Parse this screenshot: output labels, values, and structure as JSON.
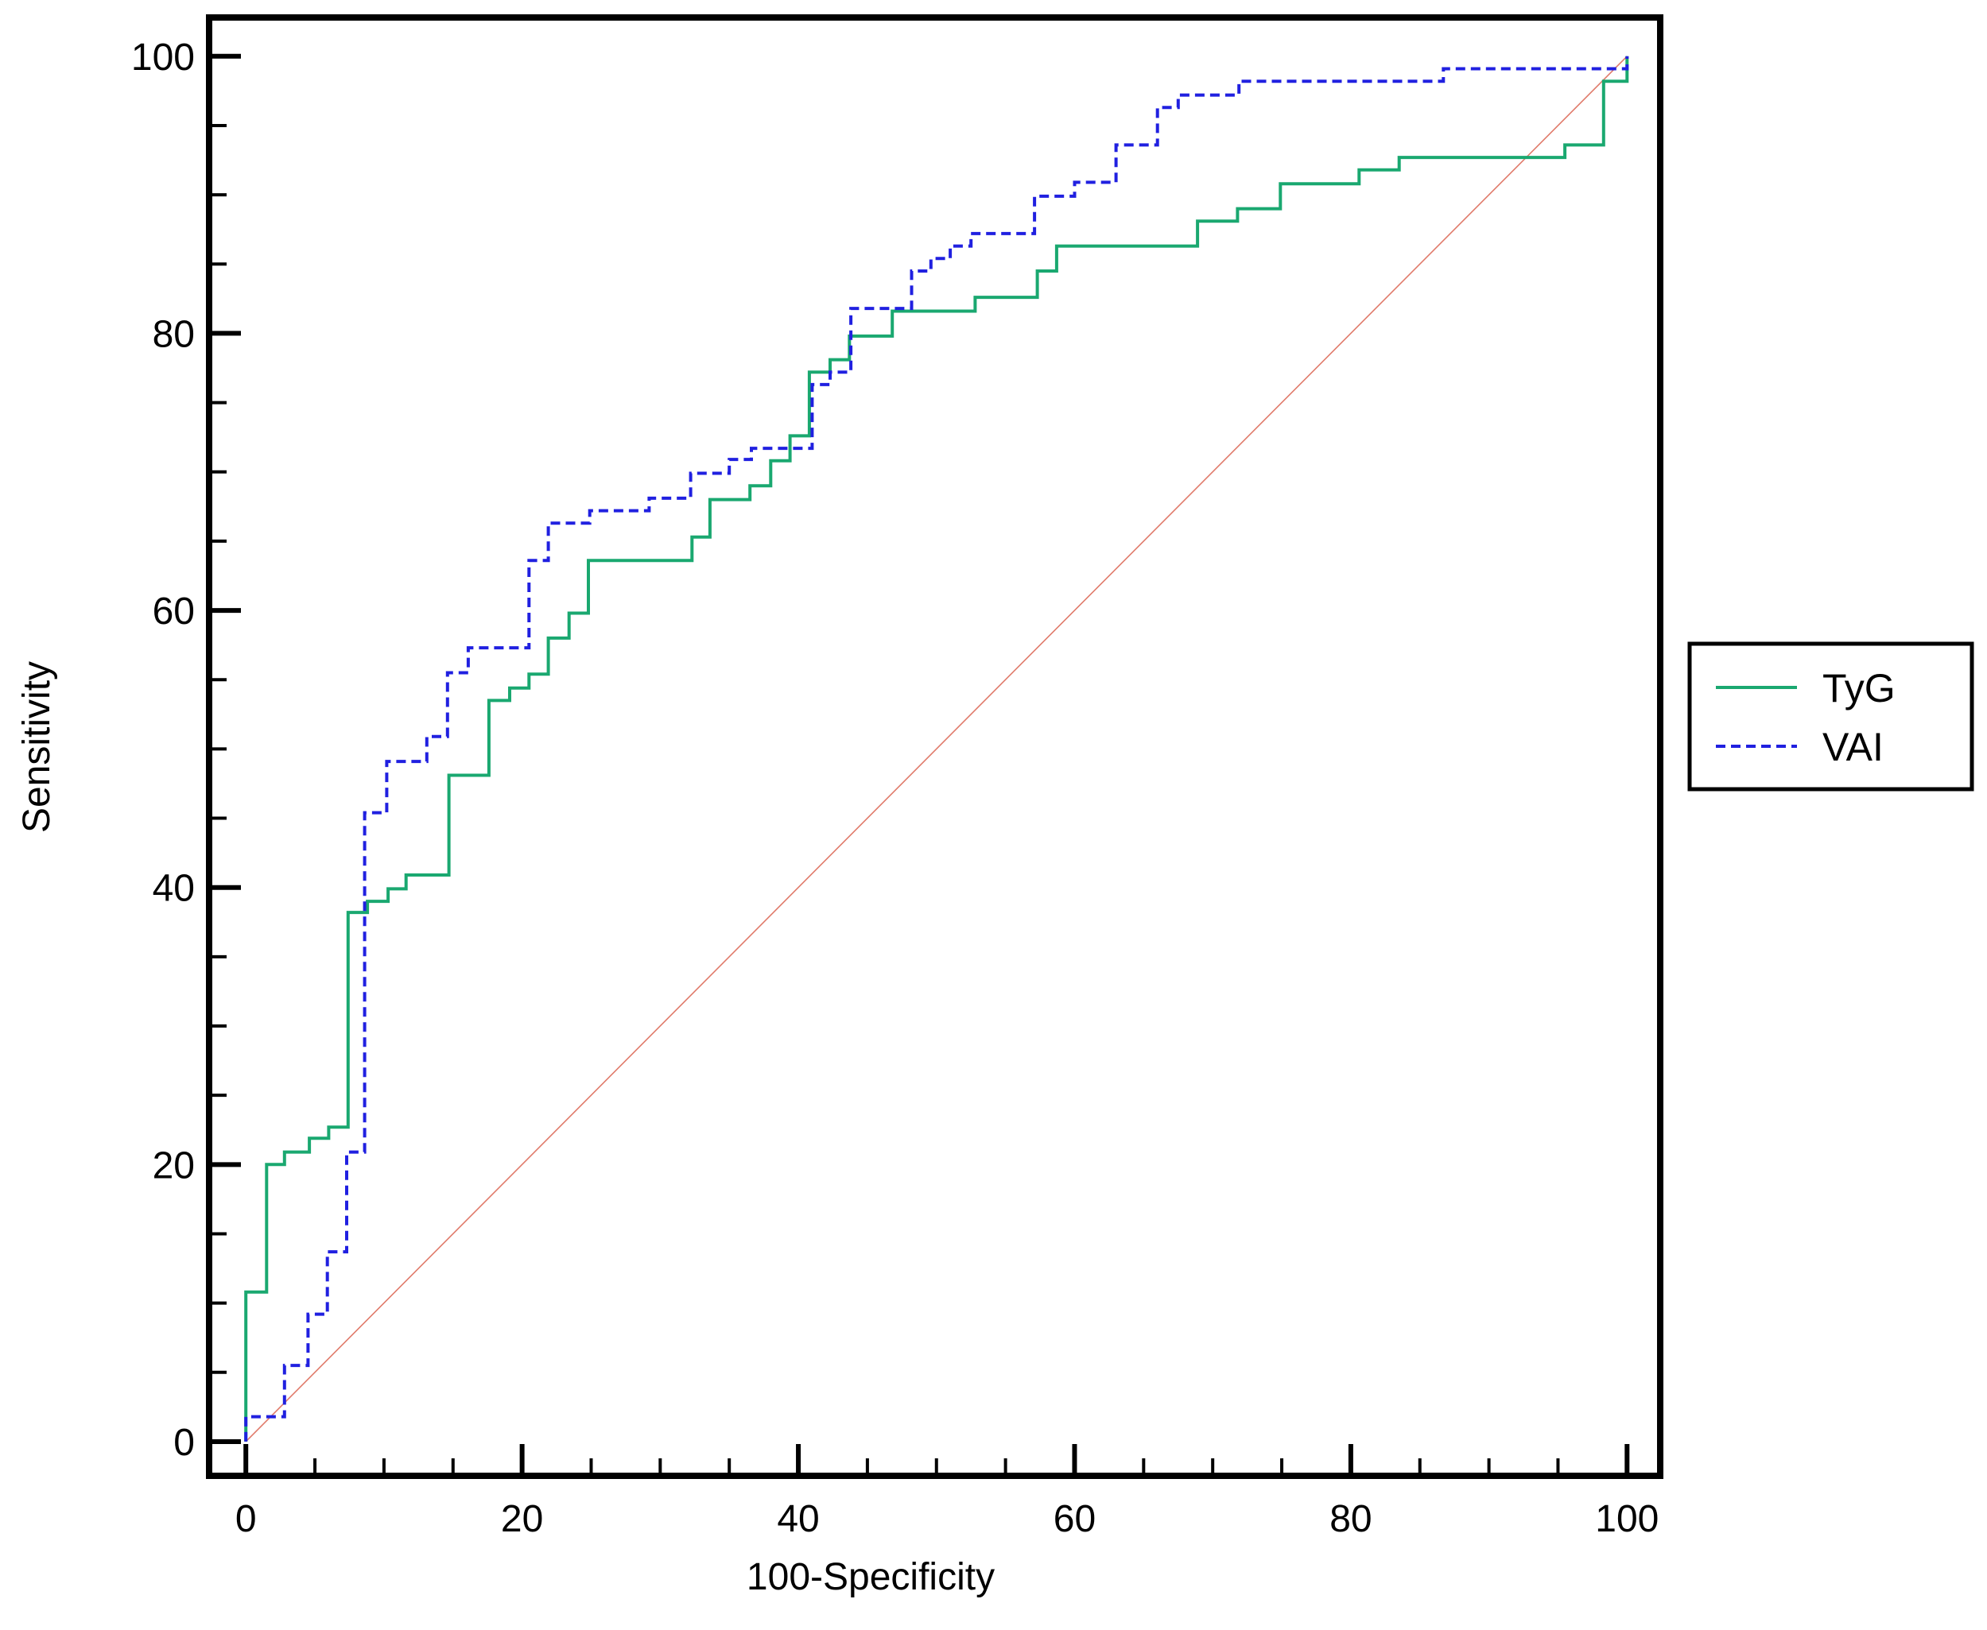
{
  "chart_data": {
    "type": "line",
    "xlabel": "100-Specificity",
    "ylabel": "Sensitivity",
    "xlim": [
      -2.66,
      102.4
    ],
    "ylim": [
      -2.47,
      102.8
    ],
    "xticks": [
      0,
      20,
      40,
      60,
      80,
      100
    ],
    "yticks": [
      0,
      20,
      40,
      60,
      80,
      100
    ],
    "xminorticks": [
      5,
      10,
      15,
      25,
      30,
      35,
      45,
      50,
      55,
      65,
      70,
      75,
      85,
      90,
      95
    ],
    "yminorticks": [
      5,
      10,
      15,
      25,
      30,
      35,
      45,
      50,
      55,
      65,
      70,
      75,
      85,
      90,
      95
    ],
    "legend": "right",
    "series": [
      {
        "name": "TyG",
        "color": "#1aa870",
        "dash": "solid",
        "x": [
          0,
          0,
          1.5,
          1.5,
          2.8,
          2.8,
          4.6,
          4.6,
          6,
          6,
          7.4,
          7.4,
          8.8,
          8.8,
          10.3,
          10.3,
          11.6,
          11.6,
          14.7,
          14.7,
          17.6,
          17.6,
          19.1,
          19.1,
          20.5,
          20.5,
          21.9,
          21.9,
          23.4,
          23.4,
          24.8,
          24.8,
          32.3,
          32.3,
          33.6,
          33.6,
          36.5,
          36.5,
          38,
          38,
          39.4,
          39.4,
          40.8,
          40.8,
          42.3,
          42.3,
          43.7,
          43.7,
          46.8,
          46.8,
          52.8,
          52.8,
          57.3,
          57.3,
          58.7,
          58.7,
          68.9,
          68.9,
          71.8,
          71.8,
          74.9,
          74.9,
          80.6,
          80.6,
          83.5,
          83.5,
          95.5,
          95.5,
          98.3,
          98.3,
          100,
          100
        ],
        "values": [
          0,
          10.8,
          10.8,
          20,
          20,
          20.9,
          20.9,
          21.9,
          21.9,
          22.7,
          22.7,
          38.2,
          38.2,
          39,
          39,
          39.9,
          39.9,
          40.9,
          40.9,
          48.1,
          48.1,
          53.5,
          53.5,
          54.4,
          54.4,
          55.4,
          55.4,
          58,
          58,
          59.8,
          59.8,
          63.6,
          63.6,
          65.3,
          65.3,
          68,
          68,
          69,
          69,
          70.8,
          70.8,
          72.6,
          72.6,
          77.2,
          77.2,
          78.1,
          78.1,
          79.8,
          79.8,
          81.6,
          81.6,
          82.6,
          82.6,
          84.5,
          84.5,
          86.3,
          86.3,
          88.1,
          88.1,
          89,
          89,
          90.8,
          90.8,
          91.8,
          91.8,
          92.7,
          92.7,
          93.6,
          93.6,
          98.2,
          98.2,
          100
        ]
      },
      {
        "name": "VAI",
        "color": "#2020e0",
        "dash": "dashed",
        "x": [
          0,
          0,
          2.8,
          2.8,
          4.5,
          4.5,
          5.9,
          5.9,
          7.3,
          7.3,
          8.6,
          8.6,
          10.2,
          10.2,
          13.1,
          13.1,
          14.6,
          14.6,
          16.1,
          16.1,
          20.5,
          20.5,
          21.9,
          21.9,
          24.9,
          24.9,
          29.2,
          29.2,
          32.2,
          32.2,
          35,
          35,
          36.6,
          36.6,
          41,
          41,
          42.3,
          42.3,
          43.8,
          43.8,
          48.2,
          48.2,
          49.6,
          49.6,
          51,
          51,
          52.5,
          52.5,
          57.1,
          57.1,
          60,
          60,
          63,
          63,
          66,
          66,
          67.5,
          67.5,
          71.9,
          71.9,
          86.7,
          86.7,
          100,
          100
        ],
        "values": [
          0,
          1.8,
          1.8,
          5.5,
          5.5,
          9.2,
          9.2,
          13.7,
          13.7,
          20.9,
          20.9,
          45.4,
          45.4,
          49.1,
          49.1,
          50.9,
          50.9,
          55.5,
          55.5,
          57.3,
          57.3,
          63.6,
          63.6,
          66.3,
          66.3,
          67.2,
          67.2,
          68.1,
          68.1,
          69.9,
          69.9,
          70.9,
          70.9,
          71.7,
          71.7,
          76.3,
          76.3,
          77.2,
          77.2,
          81.8,
          81.8,
          84.5,
          84.5,
          85.4,
          85.4,
          86.3,
          86.3,
          87.2,
          87.2,
          89.9,
          89.9,
          90.9,
          90.9,
          93.6,
          93.6,
          96.3,
          96.3,
          97.2,
          97.2,
          98.2,
          98.2,
          99.1,
          99.1,
          100
        ]
      }
    ],
    "reference_line": {
      "color": "#e07a6a",
      "x": [
        0,
        100
      ],
      "values": [
        0,
        100
      ]
    }
  }
}
